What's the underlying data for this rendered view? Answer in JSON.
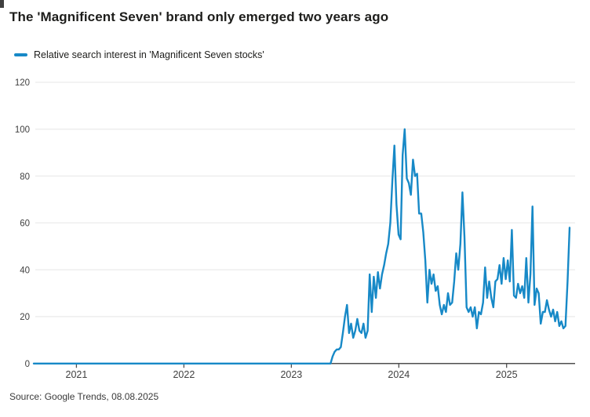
{
  "header": {
    "title": "The 'Magnificent Seven' brand only emerged two years ago"
  },
  "legend": {
    "label": "Relative search interest in 'Magnificent Seven stocks'",
    "color": "#1789c7"
  },
  "source": {
    "text": "Source: Google Trends, 08.08.2025"
  },
  "colors": {
    "line": "#1789c7",
    "grid": "#ececec",
    "axis": "#4f4f4f",
    "tick_text": "#404040",
    "title_text": "#1d1d1b"
  },
  "chart_data": {
    "type": "line",
    "title": "The 'Magnificent Seven' brand only emerged two years ago",
    "xlabel": "",
    "ylabel": "",
    "ylim": [
      0,
      120
    ],
    "y_ticks": [
      0,
      20,
      40,
      60,
      80,
      100,
      120
    ],
    "x_tick_years": [
      "2021",
      "2022",
      "2023",
      "2024",
      "2025"
    ],
    "grid": "horizontal",
    "legend_position": "top-left",
    "frequency": "weekly",
    "start_date": "2020-08-09",
    "end_date": "2025-08-03",
    "series": [
      {
        "name": "Relative search interest in 'Magnificent Seven stocks'",
        "color": "#1789c7",
        "values": [
          0,
          0,
          0,
          0,
          0,
          0,
          0,
          0,
          0,
          0,
          0,
          0,
          0,
          0,
          0,
          0,
          0,
          0,
          0,
          0,
          0,
          0,
          0,
          0,
          0,
          0,
          0,
          0,
          0,
          0,
          0,
          0,
          0,
          0,
          0,
          0,
          0,
          0,
          0,
          0,
          0,
          0,
          0,
          0,
          0,
          0,
          0,
          0,
          0,
          0,
          0,
          0,
          0,
          0,
          0,
          0,
          0,
          0,
          0,
          0,
          0,
          0,
          0,
          0,
          0,
          0,
          0,
          0,
          0,
          0,
          0,
          0,
          0,
          0,
          0,
          0,
          0,
          0,
          0,
          0,
          0,
          0,
          0,
          0,
          0,
          0,
          0,
          0,
          0,
          0,
          0,
          0,
          0,
          0,
          0,
          0,
          0,
          0,
          0,
          0,
          0,
          0,
          0,
          0,
          0,
          0,
          0,
          0,
          0,
          0,
          0,
          0,
          0,
          0,
          0,
          0,
          0,
          0,
          0,
          0,
          0,
          0,
          0,
          0,
          0,
          0,
          0,
          0,
          0,
          0,
          0,
          0,
          0,
          0,
          0,
          0,
          0,
          0,
          0,
          0,
          0,
          0,
          0,
          0,
          0,
          3,
          5,
          6,
          6,
          7,
          13,
          20,
          25,
          13,
          17,
          11,
          14,
          19,
          14,
          13,
          17,
          11,
          14,
          38,
          22,
          37,
          28,
          39,
          32,
          38,
          42,
          47,
          51,
          60,
          78,
          93,
          68,
          55,
          53,
          89,
          100,
          79,
          77,
          72,
          87,
          80,
          81,
          64,
          64,
          56,
          44,
          26,
          40,
          34,
          38,
          31,
          33,
          25,
          21,
          25,
          22,
          30,
          25,
          26,
          35,
          47,
          40,
          51,
          73,
          54,
          24,
          22,
          24,
          20,
          24,
          15,
          22,
          21,
          26,
          41,
          28,
          35,
          28,
          24,
          35,
          36,
          42,
          34,
          45,
          36,
          44,
          35,
          57,
          29,
          28,
          34,
          30,
          33,
          28,
          45,
          26,
          38,
          67,
          25,
          32,
          30,
          17,
          22,
          22,
          27,
          23,
          20,
          23,
          18,
          22,
          16,
          18,
          15,
          16,
          35,
          58
        ]
      }
    ],
    "annotations": {
      "peak_value": 100,
      "peak_date_approx": "2024-01"
    }
  }
}
